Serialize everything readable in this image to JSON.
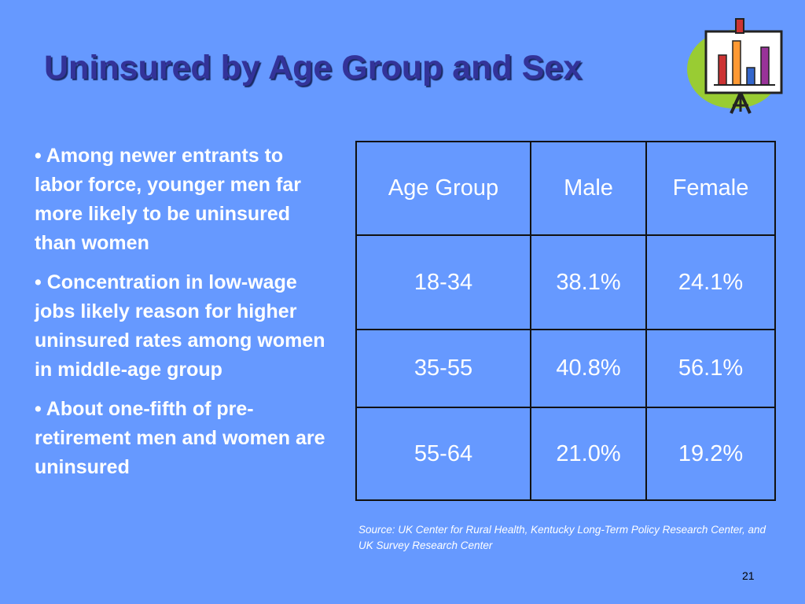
{
  "slide": {
    "title": "Uninsured by Age Group and Sex",
    "page_number": "21"
  },
  "bullets": [
    "• Among newer entrants to labor force, younger men far more likely to be uninsured than women",
    "• Concentration in low-wage jobs likely reason for higher uninsured rates among women in middle-age group",
    "• About one-fifth of pre-retirement men and women are uninsured"
  ],
  "table": {
    "headers": [
      "Age Group",
      "Male",
      "Female"
    ],
    "rows": [
      [
        "18-34",
        "38.1%",
        "24.1%"
      ],
      [
        "35-55",
        "40.8%",
        "56.1%"
      ],
      [
        "55-64",
        "21.0%",
        "19.2%"
      ]
    ]
  },
  "source": "Source: UK Center for Rural Health, Kentucky Long-Term Policy Research Center, and UK Survey Research Center",
  "clipart": {
    "icon": "presentation-chart-easel-icon",
    "colors": {
      "circle": "#99CC33",
      "bar_red": "#CC3333",
      "bar_orange": "#FF9933",
      "bar_blue": "#3366CC",
      "bar_purple": "#993399"
    }
  }
}
